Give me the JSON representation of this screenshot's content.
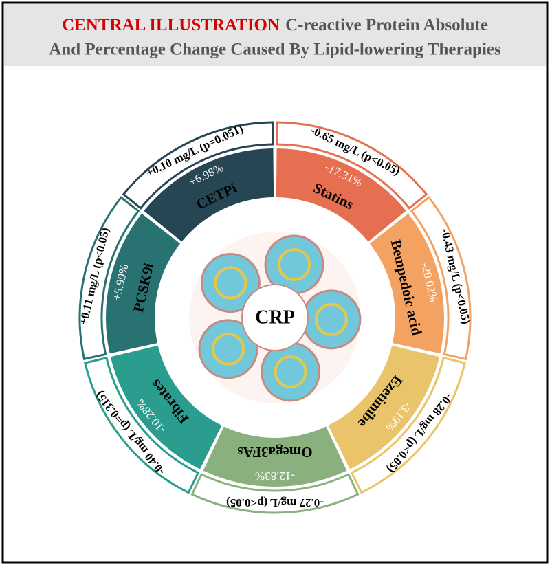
{
  "header": {
    "label": "CENTRAL ILLUSTRATION",
    "title_line1": "C-reactive Protein Absolute",
    "title_line2": "And Percentage Change Caused By Lipid-lowering Therapies"
  },
  "center_label": "CRP",
  "segments": [
    {
      "name": "Statins",
      "percent": "-17.31%",
      "absolute": "-0.65 mg/L  (p<0.05)",
      "color": "#e76f51"
    },
    {
      "name": "Bempedoic acid",
      "percent": "-20.02%",
      "absolute": "-0.43 mg/L  (p<0.05)",
      "color": "#f4a261"
    },
    {
      "name": "Ezetimibe",
      "percent": "-3.19%",
      "absolute": "-0.28 mg/L  (p<0.05)",
      "color": "#e9c46a"
    },
    {
      "name": "Omega3FAs",
      "percent": "-12.83%",
      "absolute": "-0.27 mg/L  (p<0.05)",
      "color": "#8ab17d"
    },
    {
      "name": "Fibrates",
      "percent": "-10.28%",
      "absolute": "-0.40 mg/L  (p=0.315)",
      "color": "#2a9d8f"
    },
    {
      "name": "PCSK9i",
      "percent": "+5.99%",
      "absolute": "+0.11 mg/L  (p<0.05)",
      "color": "#287271"
    },
    {
      "name": "CETPi",
      "percent": "+6.98%",
      "absolute": "+0.10 mg/L  (p=0.051)",
      "color": "#264653"
    }
  ]
}
